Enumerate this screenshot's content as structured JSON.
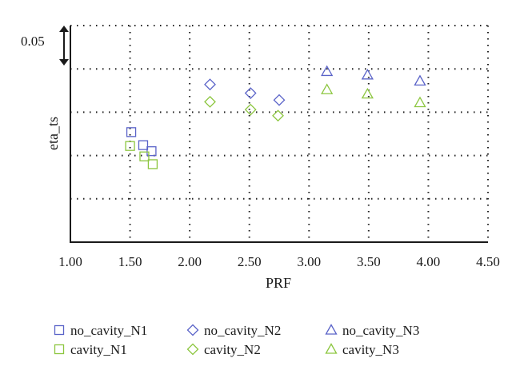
{
  "chart_data": {
    "type": "scatter",
    "title": "",
    "xlabel": "PRF",
    "ylabel": "eta_ts",
    "scale_annotation": "0.05",
    "xlim": [
      1.0,
      4.5
    ],
    "x_ticks": [
      "1.00",
      "1.50",
      "2.00",
      "2.50",
      "3.00",
      "3.50",
      "4.00",
      "4.50"
    ],
    "ylim": [
      0,
      0.25
    ],
    "y_gridlines": [
      0.05,
      0.1,
      0.15,
      0.2,
      0.25
    ],
    "y_tick_labels_shown": false,
    "grid": "dotted",
    "legend_position": "bottom",
    "series": [
      {
        "name": "no_cavity_N1",
        "marker": "square",
        "color": "#5a63c8",
        "x": [
          1.51,
          1.61,
          1.68
        ],
        "y": [
          0.127,
          0.112,
          0.105
        ]
      },
      {
        "name": "cavity_N1",
        "marker": "square",
        "color": "#8cc63f",
        "x": [
          1.5,
          1.62,
          1.69
        ],
        "y": [
          0.111,
          0.099,
          0.09
        ]
      },
      {
        "name": "no_cavity_N2",
        "marker": "diamond",
        "color": "#5a63c8",
        "x": [
          2.17,
          2.51,
          2.75
        ],
        "y": [
          0.182,
          0.172,
          0.164
        ]
      },
      {
        "name": "cavity_N2",
        "marker": "diamond",
        "color": "#8cc63f",
        "x": [
          2.17,
          2.51,
          2.74
        ],
        "y": [
          0.162,
          0.153,
          0.146
        ]
      },
      {
        "name": "no_cavity_N3",
        "marker": "triangle",
        "color": "#5a63c8",
        "x": [
          3.15,
          3.49,
          3.93
        ],
        "y": [
          0.197,
          0.193,
          0.186
        ]
      },
      {
        "name": "cavity_N3",
        "marker": "triangle",
        "color": "#8cc63f",
        "x": [
          3.15,
          3.49,
          3.93
        ],
        "y": [
          0.176,
          0.171,
          0.161
        ]
      }
    ]
  }
}
